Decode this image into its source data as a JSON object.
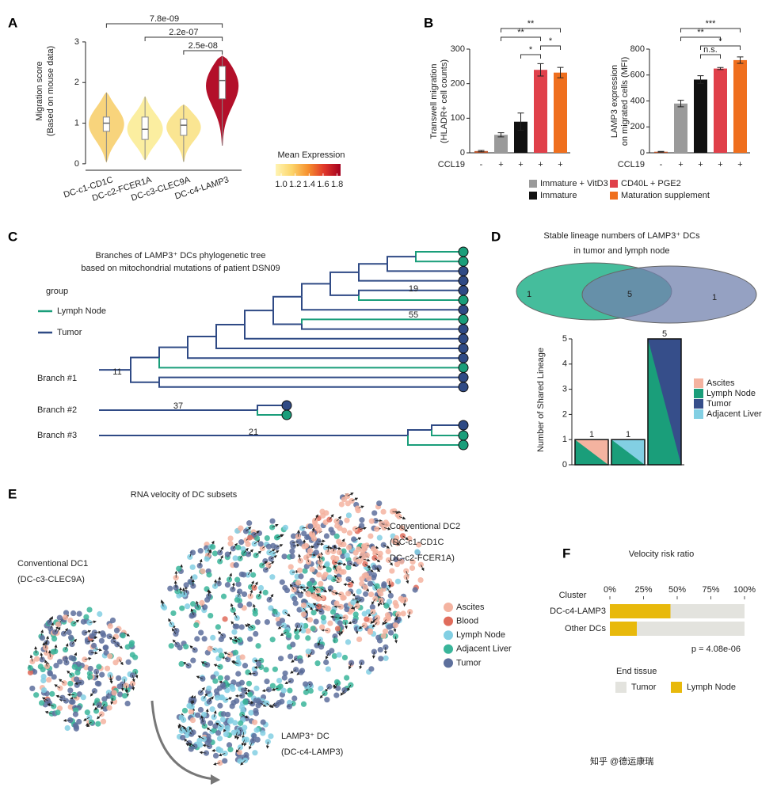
{
  "chart_data": [
    {
      "type": "violin",
      "categories": [
        "DC-c1-CD1C",
        "DC-c2-FCER1A",
        "DC-c3-CLEC9A",
        "DC-c4-LAMP3"
      ],
      "ylabel_lines": [
        "Migration score",
        "(Based on mouse data)"
      ],
      "ylim": [
        -0.1,
        3.7
      ],
      "yticks": [
        0,
        1,
        2,
        3
      ],
      "stats": [
        {
          "min": 0.05,
          "q1": 0.8,
          "median": 1.0,
          "q3": 1.15,
          "max": 1.75
        },
        {
          "min": 0.1,
          "q1": 0.6,
          "median": 0.85,
          "q3": 1.15,
          "max": 1.65
        },
        {
          "min": 0.05,
          "q1": 0.7,
          "median": 0.95,
          "q3": 1.1,
          "max": 1.45
        },
        {
          "min": 0.45,
          "q1": 1.6,
          "median": 2.05,
          "q3": 2.4,
          "max": 2.65
        }
      ],
      "colors": [
        "#f8d47c",
        "#fbeea0",
        "#fae592",
        "#b3102a"
      ],
      "comparisons": [
        {
          "pair": [
            0,
            3
          ],
          "label": "7.8e-09"
        },
        {
          "pair": [
            1,
            3
          ],
          "label": "2.2e-07"
        },
        {
          "pair": [
            2,
            3
          ],
          "label": "2.5e-08"
        }
      ],
      "colorbar": {
        "title": "Mean Expression",
        "lim": [
          0.92,
          1.85
        ],
        "ticks": [
          {
            "value": 1,
            "label": "1.0"
          },
          1.2,
          1.4,
          1.6,
          1.8
        ],
        "colors": [
          "#fff4b3",
          "#fcd46a",
          "#f6902e",
          "#e0362a",
          "#a3001f"
        ]
      }
    },
    {
      "type": "bar",
      "ylabel_lines": [
        "Transwell migration",
        "(HLADR+  cell counts)"
      ],
      "xlabel": "CCL19",
      "categories": [
        "-",
        "+",
        "+",
        "+",
        "+"
      ],
      "values": [
        5,
        52,
        90,
        240,
        232
      ],
      "errors": [
        2,
        6,
        25,
        18,
        15
      ],
      "colors": [
        "#b9542b",
        "#9a9a9a",
        "#111111",
        "#e0404a",
        "#ef6f1e"
      ],
      "ylim": [
        0,
        300
      ],
      "yticks": [
        0,
        100,
        200,
        300
      ],
      "comparisons": [
        {
          "pair": [
            1,
            4
          ],
          "label": "**"
        },
        {
          "pair": [
            1,
            3
          ],
          "label": "**"
        },
        {
          "pair": [
            3,
            4
          ],
          "label": "*"
        },
        {
          "pair": [
            2,
            3
          ],
          "label": "*"
        }
      ],
      "legend": [
        {
          "name": "Immature + VitD3",
          "color": "#9a9a9a"
        },
        {
          "name": "Immature",
          "color": "#111111"
        },
        {
          "name": "CD40L + PGE2",
          "color": "#e0404a"
        },
        {
          "name": "Maturation supplement",
          "color": "#ef6f1e"
        }
      ]
    },
    {
      "type": "bar",
      "ylabel_lines": [
        "LAMP3 expression",
        "on migrated cells (MFI)"
      ],
      "xlabel": "CCL19",
      "categories": [
        "-",
        "+",
        "+",
        "+",
        "+"
      ],
      "values": [
        8,
        380,
        565,
        650,
        715
      ],
      "errors": [
        3,
        25,
        30,
        8,
        25
      ],
      "colors": [
        "#b9542b",
        "#9a9a9a",
        "#111111",
        "#e0404a",
        "#ef6f1e"
      ],
      "ylim": [
        0,
        800
      ],
      "yticks": [
        0,
        200,
        400,
        600,
        800
      ],
      "comparisons": [
        {
          "pair": [
            1,
            4
          ],
          "label": "***"
        },
        {
          "pair": [
            1,
            3
          ],
          "label": "**"
        },
        {
          "pair": [
            2,
            4
          ],
          "label": "*"
        },
        {
          "pair": [
            2,
            3
          ],
          "label": "n.s."
        }
      ]
    },
    {
      "type": "venn",
      "title_lines": [
        "Stable lineage numbers of LAMP3⁺ DCs",
        "in tumor and lymph node"
      ],
      "values": [
        1,
        5,
        1
      ],
      "colors": [
        "#45bd9c",
        "#7282ad"
      ]
    },
    {
      "type": "split_bar",
      "ylabel": "Number of Shared Lineage",
      "values": [
        1,
        1,
        5
      ],
      "ylim": [
        0,
        5
      ],
      "yticks": [
        0,
        1,
        2,
        3,
        4,
        5
      ],
      "bar_colors": [
        [
          "#1a9e7a",
          "#f4b3a0"
        ],
        [
          "#1a9e7a",
          "#82cfe3"
        ],
        [
          "#1a9e7a",
          "#364e8a"
        ]
      ],
      "legend": [
        {
          "name": "Ascites",
          "color": "#f4b3a0"
        },
        {
          "name": "Lymph Node",
          "color": "#1a9e7a"
        },
        {
          "name": "Tumor",
          "color": "#364e8a"
        },
        {
          "name": "Adjacent Liver",
          "color": "#82cfe3"
        }
      ]
    },
    {
      "type": "hbar_stacked",
      "title": "Velocity risk ratio",
      "ylabel": "Cluster",
      "categories": [
        "DC-c4-LAMP3",
        "Other DCs"
      ],
      "series": [
        {
          "name": "Lymph Node",
          "color": "#e8b90c",
          "values": [
            45,
            20
          ]
        },
        {
          "name": "Tumor",
          "color": "#e3e3de",
          "values": [
            55,
            80
          ]
        }
      ],
      "xlim": [
        0,
        100
      ],
      "xticks": [
        {
          "value": 0,
          "label": "0%"
        },
        {
          "value": 25,
          "label": "25%"
        },
        {
          "value": 50,
          "label": "50%"
        },
        {
          "value": 75,
          "label": "75%"
        },
        {
          "value": 100,
          "label": "100%"
        }
      ],
      "annotation": "p = 4.08e-06",
      "legend_title": "End tissue"
    }
  ],
  "figure": {
    "panels": [
      "A",
      "B",
      "C",
      "D",
      "E",
      "F"
    ],
    "tree": {
      "title_lines": [
        "Branches of LAMP3⁺ DCs phylogenetic tree",
        "based on mitochondrial mutations of patient DSN09"
      ],
      "legend_title": "group",
      "legend": [
        {
          "name": "Lymph Node",
          "color": "#1a9e7a"
        },
        {
          "name": "Tumor",
          "color": "#2f4a85"
        }
      ],
      "branches": [
        "Branch #1",
        "Branch #2",
        "Branch #3"
      ],
      "branch_lengths": [
        11,
        37,
        21
      ],
      "node_labels": [
        19,
        55
      ]
    },
    "velocity": {
      "title": "RNA velocity of DC subsets",
      "labels": [
        [
          "Conventional DC2",
          "(DC-c1-CD1C",
          "DC-c2-FCER1A)"
        ],
        [
          "Conventional DC1",
          "(DC-c3-CLEC9A)"
        ],
        [
          "LAMP3⁺ DC",
          "(DC-c4-LAMP3)"
        ]
      ],
      "legend": [
        {
          "name": "Ascites",
          "color": "#f4b3a0"
        },
        {
          "name": "Blood",
          "color": "#e06c5c"
        },
        {
          "name": "Lymph Node",
          "color": "#82cfe3"
        },
        {
          "name": "Adjacent Liver",
          "color": "#39b59a"
        },
        {
          "name": "Tumor",
          "color": "#5d6f9c"
        }
      ]
    },
    "watermark": "知乎 @德运康瑞"
  }
}
